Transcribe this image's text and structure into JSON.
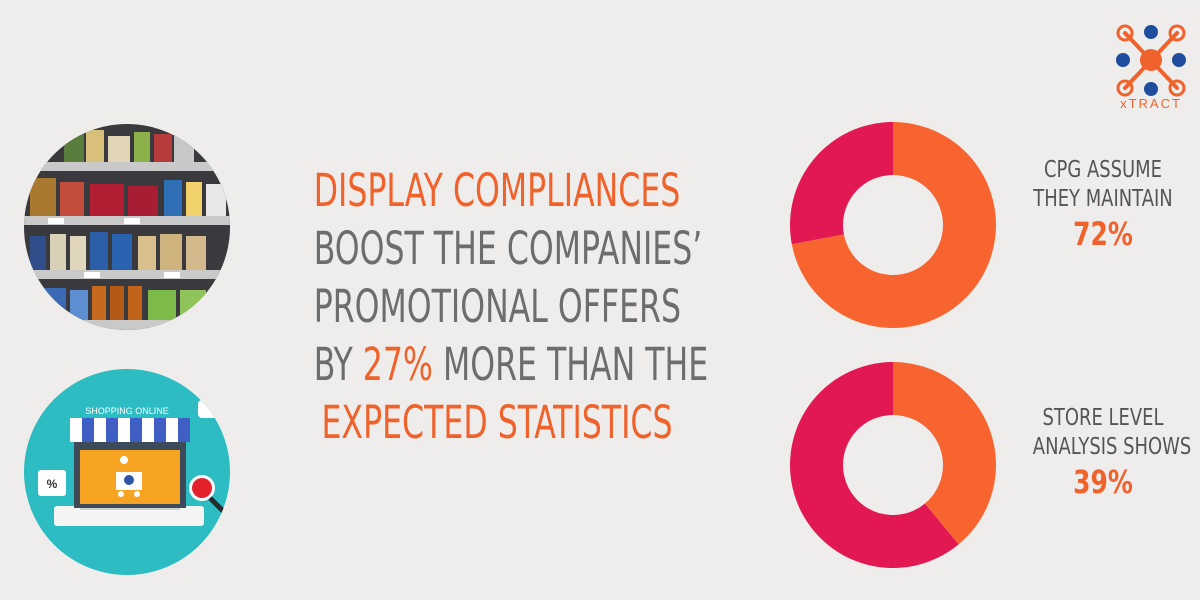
{
  "brand": {
    "logo_text": "xTRACT",
    "accent": "#f0622b",
    "secondary": "#1f4c9c"
  },
  "headline": {
    "line1": "DISPLAY COMPLIANCES",
    "line2": "BOOST THE COMPANIES’",
    "line3": "PROMOTIONAL OFFERS",
    "line4_prefix": "BY ",
    "line4_highlight": "27%",
    "line4_suffix": " MORE THAN THE",
    "line5": "EXPECTED STATISTICS"
  },
  "illustrations": {
    "shelf": "supermarket-shelf-illustration",
    "shop": {
      "label": "SHOPPING ONLINE",
      "percent_badge": "%"
    }
  },
  "chart_data": [
    {
      "type": "pie",
      "donut": true,
      "label_lines": [
        "CPG ASSUME",
        "THEY MAINTAIN"
      ],
      "value_label": "72%",
      "values": [
        72,
        28
      ],
      "colors": [
        "#f7642f",
        "#e21852"
      ]
    },
    {
      "type": "pie",
      "donut": true,
      "label_lines": [
        "STORE LEVEL",
        "ANALYSIS SHOWS"
      ],
      "value_label": "39%",
      "values": [
        39,
        61
      ],
      "colors": [
        "#f7642f",
        "#e21852"
      ]
    }
  ]
}
